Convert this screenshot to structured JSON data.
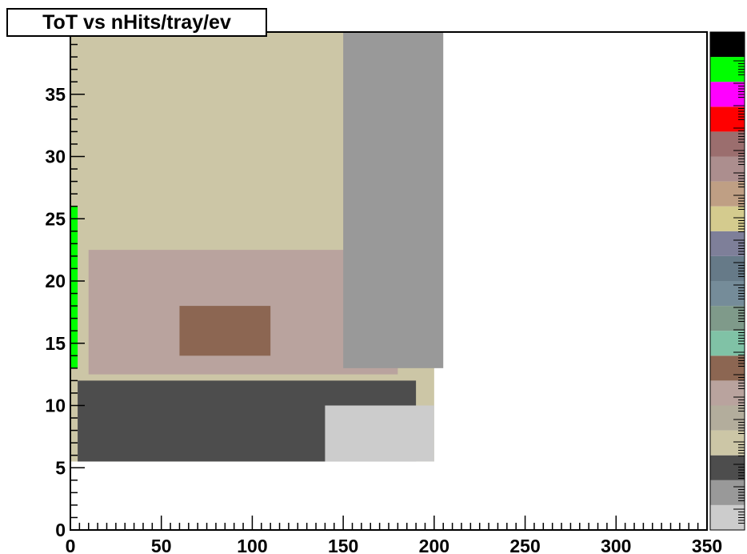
{
  "chart_data": {
    "type": "heatmap",
    "title": "ToT vs nHits/tray/ev",
    "xlabel": "",
    "ylabel": "",
    "xlim": [
      0,
      350
    ],
    "ylim": [
      0,
      40
    ],
    "x_ticks": [
      "0",
      "50",
      "100",
      "150",
      "200",
      "250",
      "300",
      "350"
    ],
    "y_ticks": [
      "0",
      "5",
      "10",
      "15",
      "20",
      "25",
      "30",
      "35"
    ],
    "y_top_label_partial": "40",
    "bin_width_x": 4,
    "bin_height_y": 0.5,
    "palette_low_to_high": [
      "#cccccc",
      "#999999",
      "#4d4d4d",
      "#ccc6a6",
      "#b3ad9c",
      "#b9a39e",
      "#8c6652",
      "#80c2a6",
      "#7f9a8a",
      "#758c99",
      "#667a88",
      "#7e7f99",
      "#d4cb8e",
      "#bf9f84",
      "#ac8e8e",
      "#9b6e6e",
      "#ff0000",
      "#ff00ff",
      "#00ff00",
      "#000000"
    ],
    "regions": [
      {
        "x": [
          0,
          200
        ],
        "y": [
          5.5,
          40
        ],
        "level": "background",
        "value": 3
      },
      {
        "x": [
          4,
          190
        ],
        "y": [
          5.5,
          12
        ],
        "level": "low",
        "value": 2
      },
      {
        "x": [
          140,
          200
        ],
        "y": [
          5.5,
          10
        ],
        "level": "lowest",
        "value": 0
      },
      {
        "x": [
          10,
          180
        ],
        "y": [
          12.5,
          22.5
        ],
        "level": "medium",
        "value": 5
      },
      {
        "x": [
          60,
          110
        ],
        "y": [
          14,
          18
        ],
        "level": "high",
        "value": 6
      },
      {
        "x": [
          150,
          205
        ],
        "y": [
          13,
          40
        ],
        "level": "edge",
        "value": 1
      },
      {
        "x": [
          0,
          4
        ],
        "y": [
          13,
          26
        ],
        "level": "peak",
        "value": 18
      }
    ]
  }
}
